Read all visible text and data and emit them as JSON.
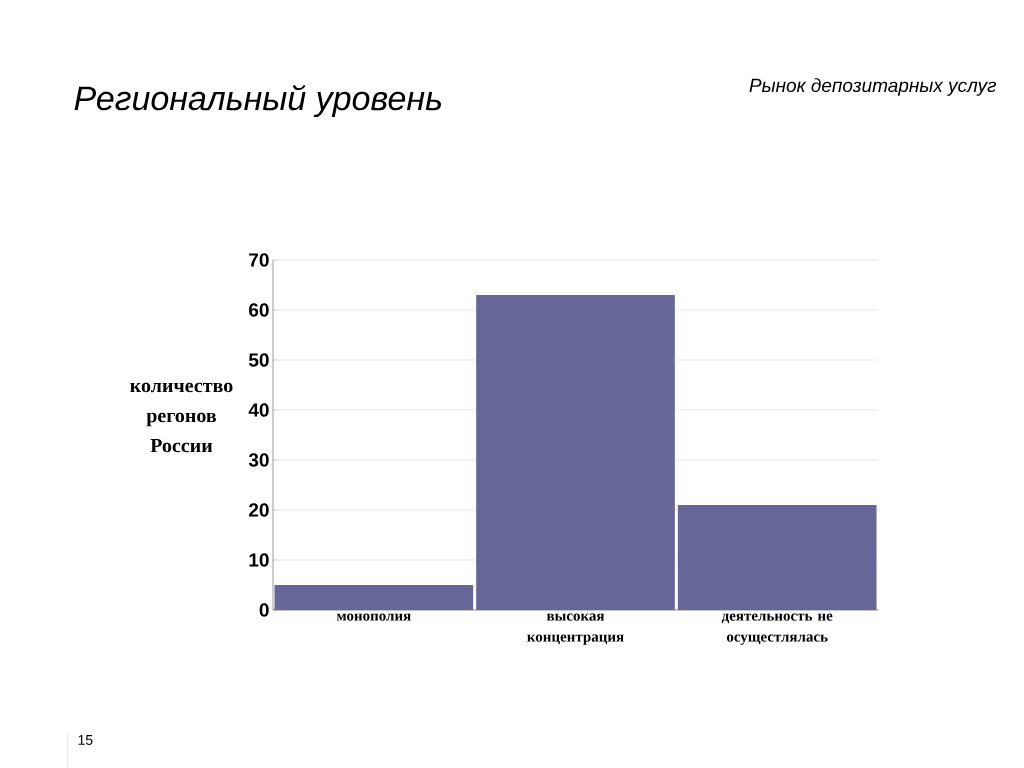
{
  "chart_data": {
    "type": "bar",
    "title": "Региональный уровень",
    "subtitle": "Рынок депозитарных услуг",
    "ylabel": "количество регонов России",
    "categories": [
      "монополия",
      "высокая концентрация",
      "деятельность не осущестлялась"
    ],
    "values": [
      5,
      63,
      21
    ],
    "color": "#666699",
    "ylim": [
      0,
      70
    ],
    "yticks": [
      0,
      10,
      20,
      30,
      40,
      50,
      60,
      70
    ],
    "grid": "y",
    "annotations": [
      "15"
    ]
  }
}
